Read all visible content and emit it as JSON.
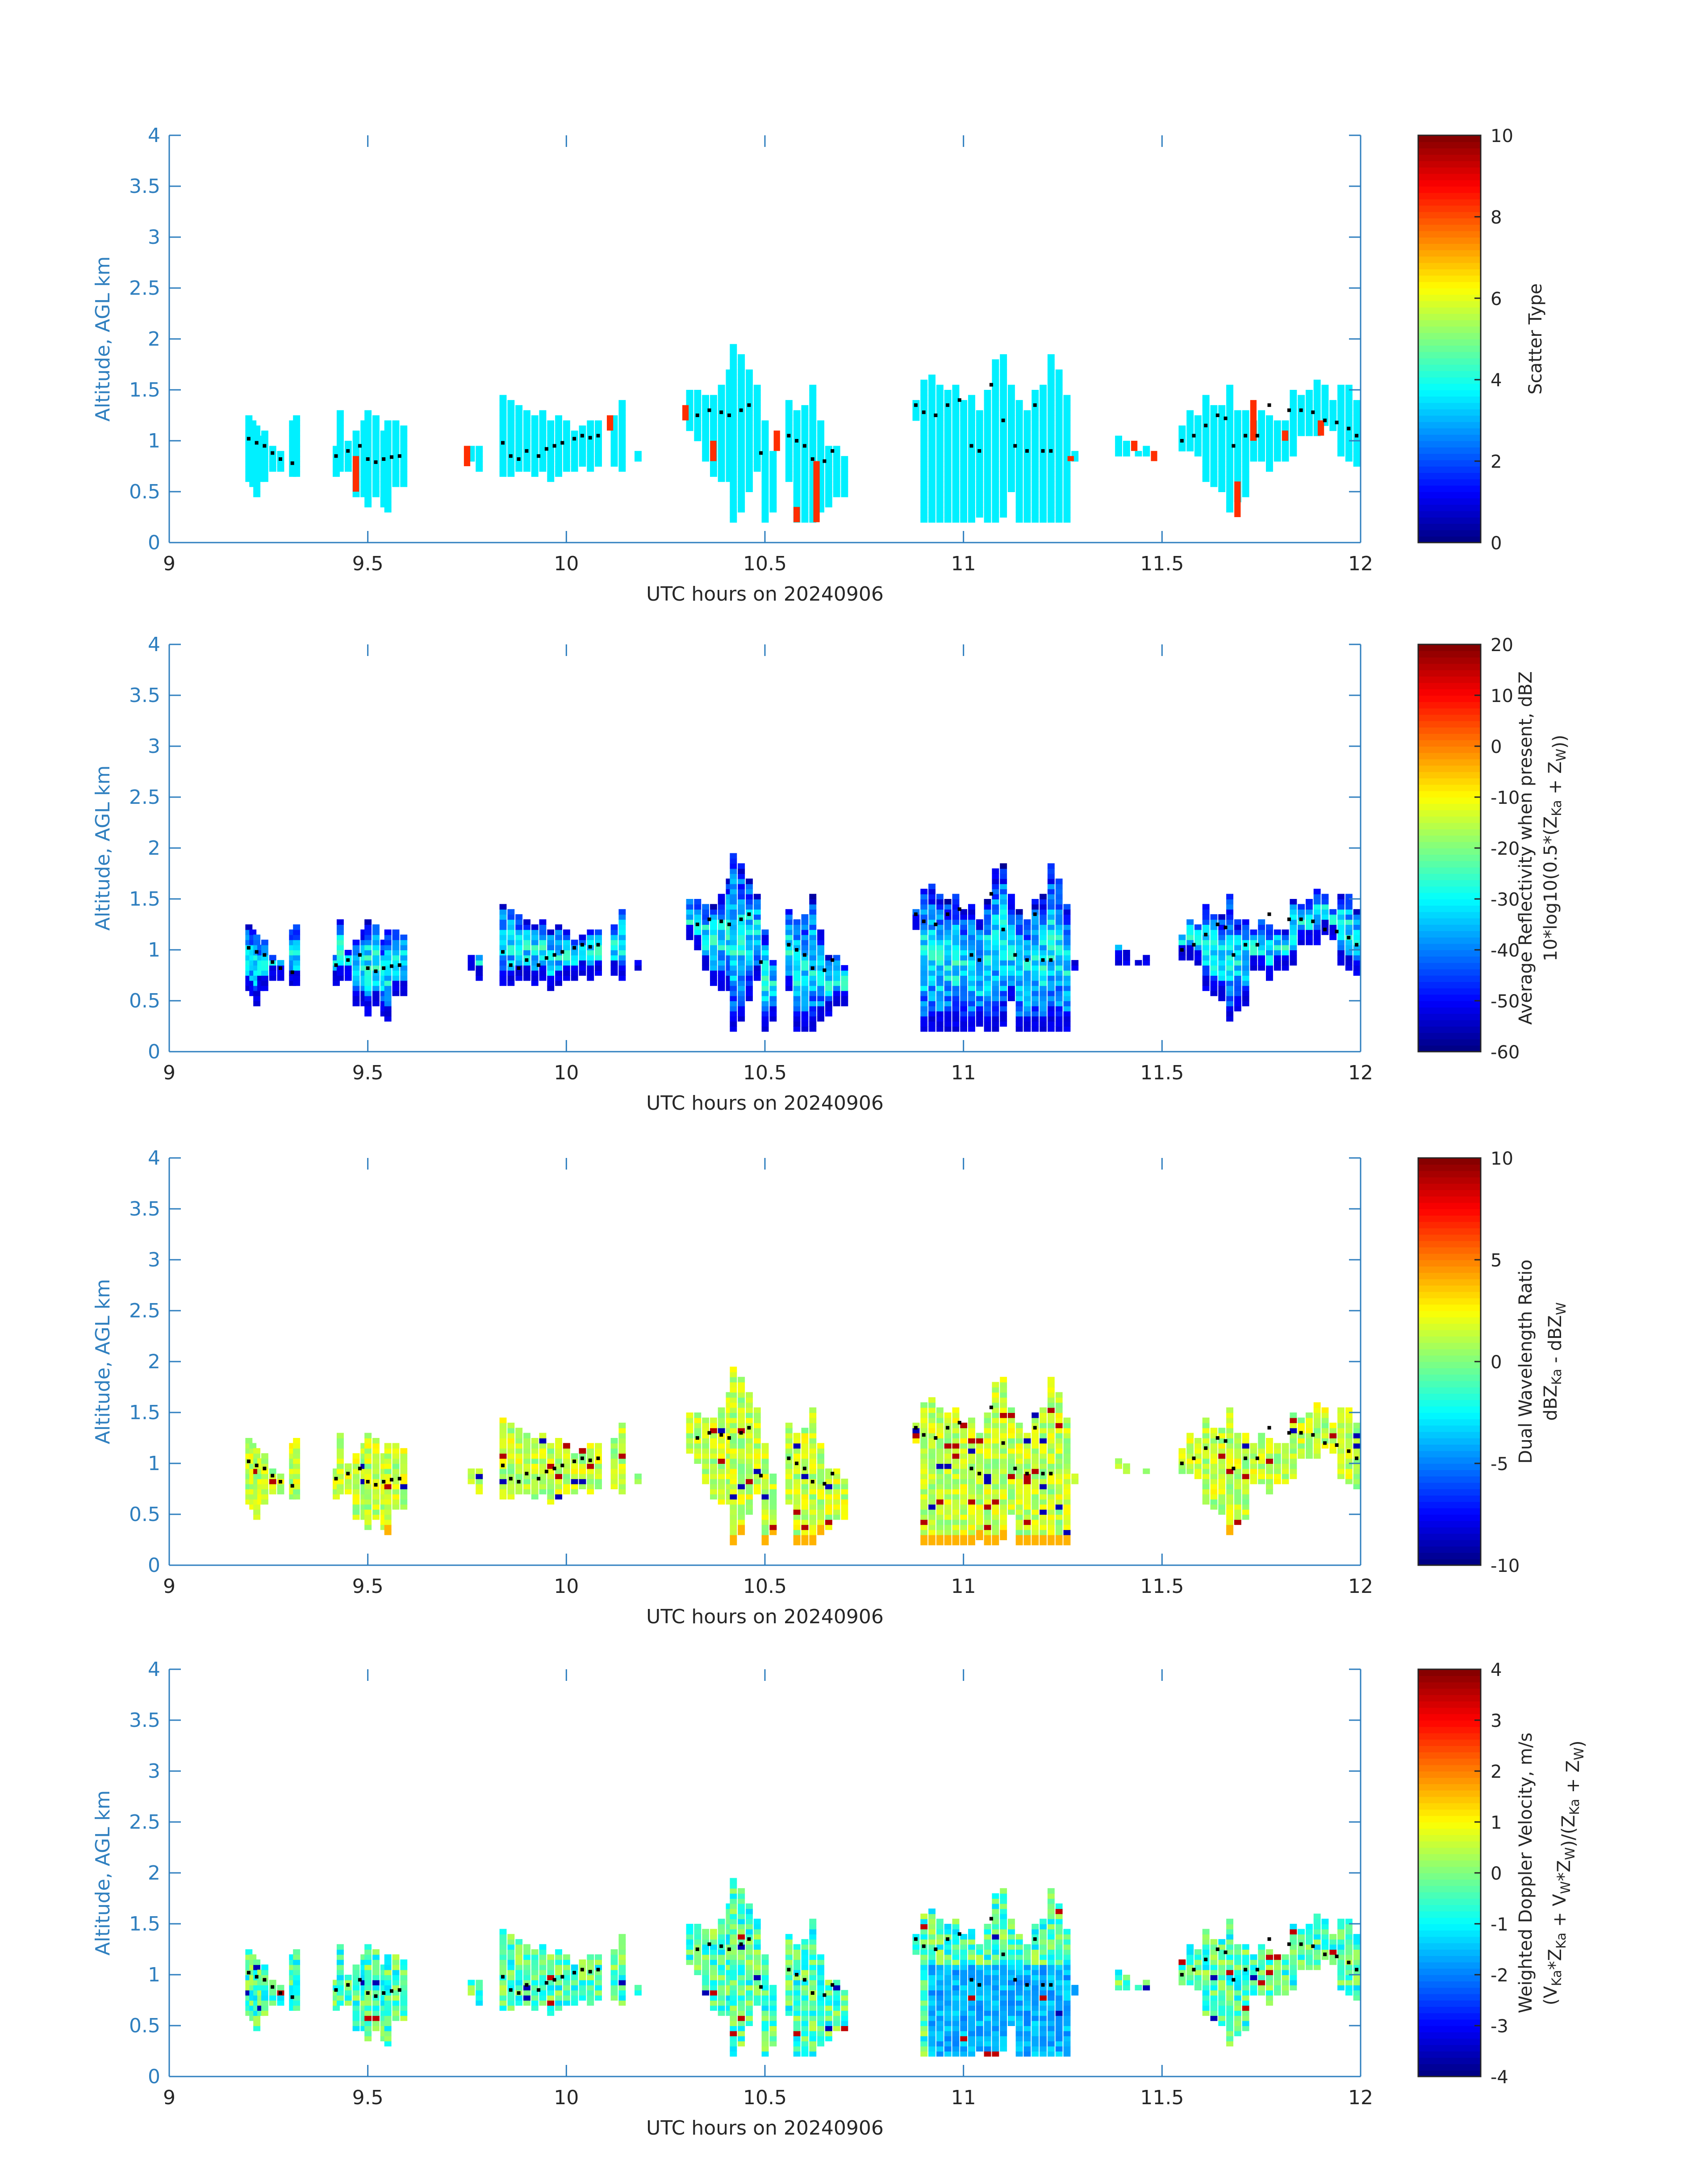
{
  "colormap": "jet",
  "colors": {
    "axis": "#2F7FBF",
    "text": "#262626",
    "marker": "#000000",
    "cbar_frame": "#262626"
  },
  "chart_data": [
    {
      "type": "heatmap",
      "variable": "scatter_type",
      "xlabel": "UTC hours on 20240906",
      "ylabel": "Altitude, AGL km",
      "xlim": [
        9,
        12
      ],
      "ylim": [
        0,
        4
      ],
      "x_ticks": [
        "9",
        "9.5",
        "10",
        "10.5",
        "11",
        "11.5",
        "12"
      ],
      "y_ticks": [
        "0",
        "0.5",
        "1",
        "1.5",
        "2",
        "2.5",
        "3",
        "3.5",
        "4"
      ],
      "colorbar": {
        "label": [
          "Scatter Type"
        ],
        "clim": [
          0,
          10
        ],
        "ticks": [
          "0",
          "2",
          "4",
          "6",
          "8",
          "10"
        ]
      },
      "style": "scatter",
      "base_value": 3.6,
      "accent_value": 8.3,
      "accent_cells": [
        [
          9.47,
          0.5,
          0.85
        ],
        [
          9.75,
          0.75,
          0.95
        ],
        [
          10.11,
          1.1,
          1.25
        ],
        [
          10.3,
          1.2,
          1.35
        ],
        [
          10.37,
          0.8,
          1.0
        ],
        [
          10.53,
          0.9,
          1.1
        ],
        [
          10.58,
          0.2,
          0.35
        ],
        [
          10.63,
          0.2,
          0.8
        ],
        [
          11.27,
          0.8,
          0.85
        ],
        [
          11.43,
          0.9,
          1.0
        ],
        [
          11.48,
          0.8,
          0.9
        ],
        [
          11.69,
          0.25,
          0.6
        ],
        [
          11.73,
          1.0,
          1.4
        ],
        [
          11.81,
          1.0,
          1.1
        ],
        [
          11.9,
          1.05,
          1.2
        ]
      ]
    },
    {
      "type": "heatmap",
      "variable": "reflectivity",
      "xlabel": "UTC hours on 20240906",
      "ylabel": "Altitude, AGL km",
      "xlim": [
        9,
        12
      ],
      "ylim": [
        0,
        4
      ],
      "x_ticks": [
        "9",
        "9.5",
        "10",
        "10.5",
        "11",
        "11.5",
        "12"
      ],
      "y_ticks": [
        "0",
        "0.5",
        "1",
        "1.5",
        "2",
        "2.5",
        "3",
        "3.5",
        "4"
      ],
      "colorbar": {
        "label": [
          "Average Reflectivity when present, dBZ",
          "10*log10(0.5*(Z_Ka + Z_W))"
        ],
        "clim": [
          -60,
          20
        ],
        "ticks": [
          "-60",
          "-50",
          "-40",
          "-30",
          "-20",
          "-10",
          "0",
          "10",
          "20"
        ]
      },
      "style": "reflectivity"
    },
    {
      "type": "heatmap",
      "variable": "dual_wavelength_ratio",
      "xlabel": "UTC hours on 20240906",
      "ylabel": "Altitude, AGL km",
      "xlim": [
        9,
        12
      ],
      "ylim": [
        0,
        4
      ],
      "x_ticks": [
        "9",
        "9.5",
        "10",
        "10.5",
        "11",
        "11.5",
        "12"
      ],
      "y_ticks": [
        "0",
        "0.5",
        "1",
        "1.5",
        "2",
        "2.5",
        "3",
        "3.5",
        "4"
      ],
      "colorbar": {
        "label": [
          "Dual Wavelength Ratio",
          "dBZ_Ka - dBZ_W"
        ],
        "clim": [
          -10,
          10
        ],
        "ticks": [
          "-10",
          "-5",
          "0",
          "5",
          "10"
        ]
      },
      "style": "dwr"
    },
    {
      "type": "heatmap",
      "variable": "weighted_doppler_velocity",
      "xlabel": "UTC hours on 20240906",
      "ylabel": "Altitude, AGL km",
      "xlim": [
        9,
        12
      ],
      "ylim": [
        0,
        4
      ],
      "x_ticks": [
        "9",
        "9.5",
        "10",
        "10.5",
        "11",
        "11.5",
        "12"
      ],
      "y_ticks": [
        "0",
        "0.5",
        "1",
        "1.5",
        "2",
        "2.5",
        "3",
        "3.5",
        "4"
      ],
      "colorbar": {
        "label": [
          "Weighted Doppler Velocity, m/s",
          "(V_Ka*Z_Ka + V_W*Z_W)/(Z_Ka + Z_W)"
        ],
        "clim": [
          -4,
          4
        ],
        "ticks": [
          "-4",
          "-3",
          "-2",
          "-1",
          "0",
          "1",
          "2",
          "3",
          "4"
        ]
      },
      "style": "velocity"
    }
  ],
  "cloud_columns": {
    "x_step_hours": 0.0167,
    "y_step_km": 0.05,
    "columns": [
      [
        9.2,
        0.6,
        1.25
      ],
      [
        9.21,
        0.55,
        1.2
      ],
      [
        9.22,
        0.45,
        1.15
      ],
      [
        9.23,
        0.6,
        1.05
      ],
      [
        9.24,
        0.6,
        1.1
      ],
      [
        9.26,
        0.7,
        0.95
      ],
      [
        9.28,
        0.7,
        0.9
      ],
      [
        9.31,
        0.65,
        1.2
      ],
      [
        9.32,
        0.65,
        1.25
      ],
      [
        9.42,
        0.65,
        0.95
      ],
      [
        9.43,
        0.7,
        1.3
      ],
      [
        9.45,
        0.7,
        1.0
      ],
      [
        9.47,
        0.45,
        1.1
      ],
      [
        9.49,
        0.45,
        1.2
      ],
      [
        9.5,
        0.35,
        1.3
      ],
      [
        9.52,
        0.45,
        1.25
      ],
      [
        9.54,
        0.35,
        1.1
      ],
      [
        9.55,
        0.3,
        1.2
      ],
      [
        9.57,
        0.55,
        1.2
      ],
      [
        9.59,
        0.55,
        1.15
      ],
      [
        9.76,
        0.8,
        0.95
      ],
      [
        9.78,
        0.7,
        0.95
      ],
      [
        9.84,
        0.65,
        1.45
      ],
      [
        9.86,
        0.65,
        1.4
      ],
      [
        9.88,
        0.7,
        1.35
      ],
      [
        9.9,
        0.7,
        1.3
      ],
      [
        9.92,
        0.65,
        1.25
      ],
      [
        9.94,
        0.7,
        1.3
      ],
      [
        9.96,
        0.6,
        1.2
      ],
      [
        9.98,
        0.65,
        1.25
      ],
      [
        10.0,
        0.7,
        1.2
      ],
      [
        10.02,
        0.7,
        1.1
      ],
      [
        10.04,
        0.75,
        1.15
      ],
      [
        10.06,
        0.7,
        1.2
      ],
      [
        10.08,
        0.75,
        1.2
      ],
      [
        10.12,
        0.75,
        1.25
      ],
      [
        10.14,
        0.7,
        1.4
      ],
      [
        10.18,
        0.8,
        0.9
      ],
      [
        10.31,
        1.1,
        1.5
      ],
      [
        10.33,
        1.0,
        1.5
      ],
      [
        10.35,
        0.8,
        1.45
      ],
      [
        10.37,
        0.65,
        1.45
      ],
      [
        10.39,
        0.6,
        1.55
      ],
      [
        10.41,
        0.6,
        1.7
      ],
      [
        10.42,
        0.2,
        1.95
      ],
      [
        10.44,
        0.3,
        1.85
      ],
      [
        10.46,
        0.5,
        1.7
      ],
      [
        10.48,
        0.7,
        1.55
      ],
      [
        10.5,
        0.2,
        1.2
      ],
      [
        10.52,
        0.3,
        0.9
      ],
      [
        10.56,
        0.6,
        1.4
      ],
      [
        10.58,
        0.2,
        1.3
      ],
      [
        10.6,
        0.2,
        1.35
      ],
      [
        10.62,
        0.2,
        1.55
      ],
      [
        10.64,
        0.3,
        1.2
      ],
      [
        10.66,
        0.35,
        0.95
      ],
      [
        10.68,
        0.45,
        0.95
      ],
      [
        10.7,
        0.45,
        0.85
      ],
      [
        10.88,
        1.2,
        1.4
      ],
      [
        10.9,
        0.2,
        1.6
      ],
      [
        10.92,
        0.2,
        1.65
      ],
      [
        10.94,
        0.2,
        1.55
      ],
      [
        10.96,
        0.2,
        1.5
      ],
      [
        10.98,
        0.2,
        1.55
      ],
      [
        11.0,
        0.2,
        1.4
      ],
      [
        11.02,
        0.2,
        1.45
      ],
      [
        11.04,
        0.25,
        1.3
      ],
      [
        11.06,
        0.2,
        1.5
      ],
      [
        11.08,
        0.2,
        1.8
      ],
      [
        11.1,
        0.25,
        1.85
      ],
      [
        11.12,
        0.5,
        1.55
      ],
      [
        11.14,
        0.2,
        1.4
      ],
      [
        11.16,
        0.2,
        1.3
      ],
      [
        11.18,
        0.2,
        1.5
      ],
      [
        11.2,
        0.2,
        1.55
      ],
      [
        11.22,
        0.2,
        1.85
      ],
      [
        11.24,
        0.2,
        1.7
      ],
      [
        11.26,
        0.2,
        1.45
      ],
      [
        11.28,
        0.8,
        0.9
      ],
      [
        11.39,
        0.85,
        1.05
      ],
      [
        11.41,
        0.85,
        1.0
      ],
      [
        11.44,
        0.85,
        0.9
      ],
      [
        11.46,
        0.85,
        0.95
      ],
      [
        11.55,
        0.9,
        1.15
      ],
      [
        11.57,
        0.9,
        1.3
      ],
      [
        11.59,
        0.85,
        1.25
      ],
      [
        11.61,
        0.6,
        1.45
      ],
      [
        11.63,
        0.55,
        1.35
      ],
      [
        11.65,
        0.5,
        1.35
      ],
      [
        11.67,
        0.3,
        1.55
      ],
      [
        11.69,
        0.4,
        1.3
      ],
      [
        11.71,
        0.45,
        1.3
      ],
      [
        11.73,
        0.8,
        1.2
      ],
      [
        11.75,
        0.8,
        1.3
      ],
      [
        11.77,
        0.7,
        1.25
      ],
      [
        11.79,
        0.8,
        1.2
      ],
      [
        11.81,
        0.8,
        1.2
      ],
      [
        11.83,
        0.85,
        1.5
      ],
      [
        11.85,
        1.05,
        1.45
      ],
      [
        11.87,
        1.05,
        1.5
      ],
      [
        11.89,
        1.05,
        1.6
      ],
      [
        11.91,
        1.15,
        1.55
      ],
      [
        11.93,
        1.1,
        1.4
      ],
      [
        11.95,
        0.85,
        1.55
      ],
      [
        11.97,
        0.8,
        1.55
      ],
      [
        11.99,
        0.75,
        1.4
      ]
    ],
    "markers": [
      [
        9.2,
        1.02
      ],
      [
        9.22,
        0.98
      ],
      [
        9.24,
        0.95
      ],
      [
        9.26,
        0.88
      ],
      [
        9.28,
        0.82
      ],
      [
        9.31,
        0.78
      ],
      [
        9.42,
        0.85
      ],
      [
        9.45,
        0.9
      ],
      [
        9.48,
        0.95
      ],
      [
        9.5,
        0.82
      ],
      [
        9.52,
        0.79
      ],
      [
        9.54,
        0.82
      ],
      [
        9.56,
        0.84
      ],
      [
        9.58,
        0.85
      ],
      [
        9.84,
        0.98
      ],
      [
        9.86,
        0.85
      ],
      [
        9.88,
        0.82
      ],
      [
        9.9,
        0.9
      ],
      [
        9.93,
        0.85
      ],
      [
        9.95,
        0.92
      ],
      [
        9.97,
        0.95
      ],
      [
        9.99,
        0.98
      ],
      [
        10.02,
        1.02
      ],
      [
        10.04,
        1.05
      ],
      [
        10.06,
        1.03
      ],
      [
        10.08,
        1.05
      ],
      [
        10.33,
        1.25
      ],
      [
        10.36,
        1.3
      ],
      [
        10.39,
        1.28
      ],
      [
        10.41,
        1.25
      ],
      [
        10.44,
        1.3
      ],
      [
        10.46,
        1.35
      ],
      [
        10.49,
        0.88
      ],
      [
        10.56,
        1.05
      ],
      [
        10.58,
        1.0
      ],
      [
        10.6,
        0.95
      ],
      [
        10.62,
        0.82
      ],
      [
        10.65,
        0.8
      ],
      [
        10.67,
        0.9
      ],
      [
        10.88,
        1.35
      ],
      [
        10.9,
        1.28
      ],
      [
        10.93,
        1.25
      ],
      [
        10.96,
        1.35
      ],
      [
        10.99,
        1.4
      ],
      [
        11.02,
        0.95
      ],
      [
        11.04,
        0.9
      ],
      [
        11.07,
        1.55
      ],
      [
        11.1,
        1.2
      ],
      [
        11.13,
        0.95
      ],
      [
        11.16,
        0.9
      ],
      [
        11.18,
        1.35
      ],
      [
        11.2,
        0.9
      ],
      [
        11.22,
        0.9
      ],
      [
        11.55,
        1.0
      ],
      [
        11.58,
        1.05
      ],
      [
        11.61,
        1.15
      ],
      [
        11.64,
        1.25
      ],
      [
        11.66,
        1.22
      ],
      [
        11.68,
        0.95
      ],
      [
        11.71,
        1.05
      ],
      [
        11.74,
        1.05
      ],
      [
        11.77,
        1.35
      ],
      [
        11.82,
        1.3
      ],
      [
        11.85,
        1.3
      ],
      [
        11.88,
        1.28
      ],
      [
        11.91,
        1.2
      ],
      [
        11.94,
        1.18
      ],
      [
        11.97,
        1.12
      ],
      [
        11.99,
        1.05
      ]
    ]
  }
}
